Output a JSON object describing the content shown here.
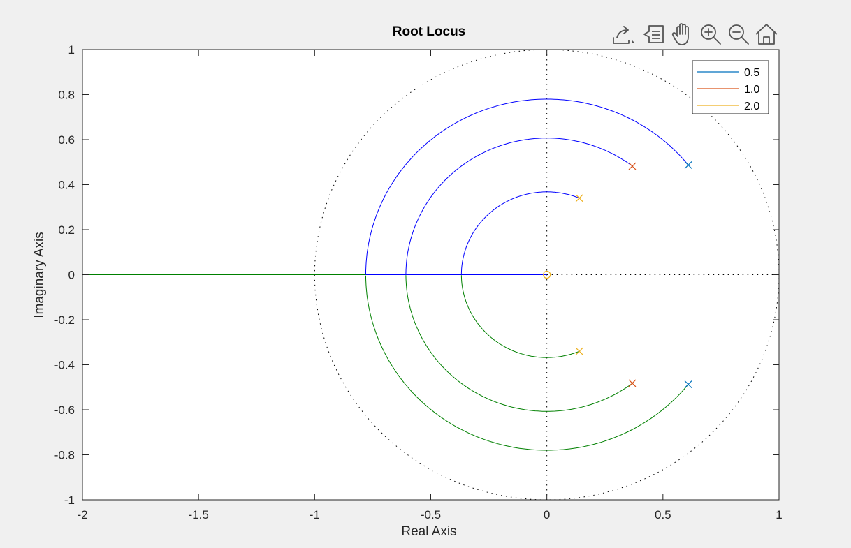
{
  "chart_data": {
    "type": "line",
    "title": "Root Locus",
    "xlabel": "Real Axis",
    "ylabel": "Imaginary Axis",
    "xlim": [
      -2,
      1
    ],
    "ylim": [
      -1,
      1
    ],
    "xticks": [
      -2,
      -1.5,
      -1,
      -0.5,
      0,
      0.5,
      1
    ],
    "xtick_labels": [
      "-2",
      "-1.5",
      "-1",
      "-0.5",
      "0",
      "0.5",
      "1"
    ],
    "yticks": [
      -1,
      -0.8,
      -0.6,
      -0.4,
      -0.2,
      0,
      0.2,
      0.4,
      0.6,
      0.8,
      1
    ],
    "ytick_labels": [
      "-1",
      "-0.8",
      "-0.6",
      "-0.4",
      "-0.2",
      "0",
      "0.2",
      "0.4",
      "0.6",
      "0.8",
      "1"
    ],
    "grid": false,
    "legend_position": "top-right",
    "unit_circle": true,
    "zero": {
      "x": 0,
      "y": 0,
      "color": "#EDB120"
    },
    "branch_colors": {
      "upper": "#0000FF",
      "lower": "#008000"
    },
    "series": [
      {
        "name": "0.5",
        "color": "#0072BD",
        "radius": 0.78,
        "pole_angle_deg": 38.7,
        "poles": [
          [
            0.609,
            0.487
          ],
          [
            0.609,
            -0.487
          ]
        ]
      },
      {
        "name": "1.0",
        "color": "#D95319",
        "radius": 0.607,
        "pole_angle_deg": 52.8,
        "poles": [
          [
            0.368,
            0.482
          ],
          [
            0.368,
            -0.482
          ]
        ]
      },
      {
        "name": "2.0",
        "color": "#EDB120",
        "radius": 0.368,
        "pole_angle_deg": 67.6,
        "poles": [
          [
            0.14,
            0.34
          ],
          [
            0.14,
            -0.34
          ]
        ]
      }
    ]
  },
  "toolbar": {
    "icons": [
      "export-icon",
      "datatip-icon",
      "pan-icon",
      "zoom-in-icon",
      "zoom-out-icon",
      "home-icon"
    ]
  }
}
